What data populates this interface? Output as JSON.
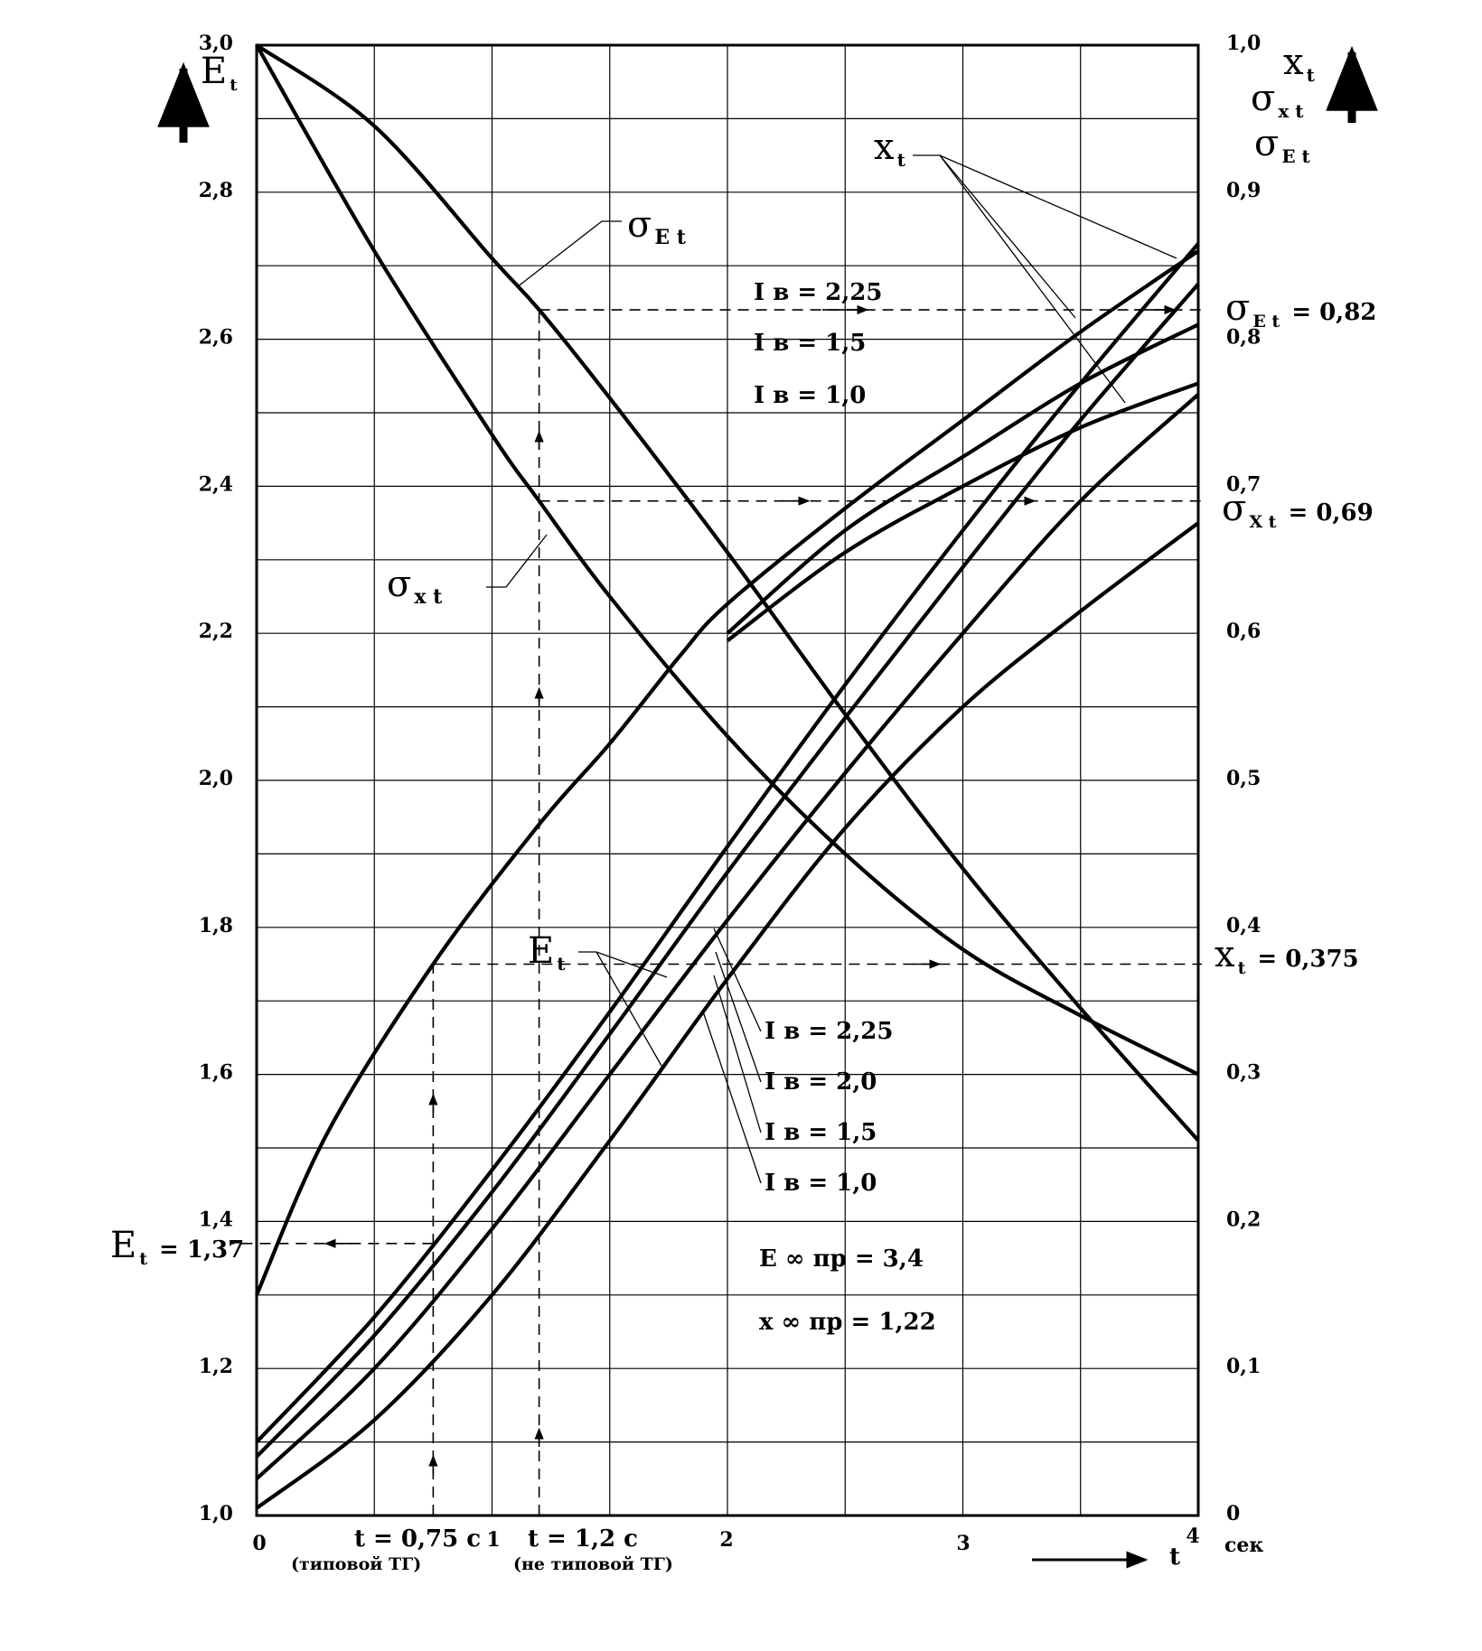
{
  "chart_data": {
    "type": "line",
    "x": {
      "range": [
        0,
        4
      ],
      "ticks": [
        0,
        1,
        2,
        3,
        4
      ],
      "tick_labels": [
        "0",
        "1",
        "2",
        "3",
        "4"
      ],
      "label": "t",
      "unit": "сек"
    },
    "y_left": {
      "range": [
        1.0,
        3.0
      ],
      "ticks": [
        1.0,
        1.2,
        1.4,
        1.6,
        1.8,
        2.0,
        2.2,
        2.4,
        2.6,
        2.8,
        3.0
      ],
      "tick_labels": [
        "1,0",
        "1,2",
        "1,4",
        "1,6",
        "1,8",
        "2,0",
        "2,2",
        "2,4",
        "2,6",
        "2,8",
        "3,0"
      ],
      "label": "E",
      "label_sub": "t"
    },
    "y_right": {
      "range": [
        0,
        1.0
      ],
      "ticks": [
        0,
        0.1,
        0.2,
        0.3,
        0.4,
        0.5,
        0.6,
        0.7,
        0.8,
        0.9,
        1.0
      ],
      "tick_labels": [
        "0",
        "0,1",
        "0,2",
        "0,3",
        "0,4",
        "0,5",
        "0,6",
        "0,7",
        "0,8",
        "0,9",
        "1,0"
      ],
      "labels": [
        {
          "sym": "x",
          "sub": "t"
        },
        {
          "sym": "σ",
          "sub": "x t"
        },
        {
          "sym": "σ",
          "sub": "E t"
        }
      ]
    },
    "grid": true,
    "series": [
      {
        "name": "σ E t",
        "axis": "right",
        "x": [
          0,
          0.5,
          1.0,
          1.2,
          1.5,
          2.0,
          2.5,
          3.0,
          3.5,
          4.0
        ],
        "y": [
          1.0,
          0.945,
          0.855,
          0.82,
          0.76,
          0.655,
          0.545,
          0.44,
          0.345,
          0.255
        ]
      },
      {
        "name": "σ x t",
        "axis": "right",
        "x": [
          0,
          0.5,
          1.0,
          1.2,
          1.5,
          2.0,
          2.5,
          3.0,
          3.5,
          4.0
        ],
        "y": [
          1.0,
          0.86,
          0.735,
          0.69,
          0.625,
          0.53,
          0.45,
          0.385,
          0.34,
          0.3
        ]
      },
      {
        "name": "x t  I в = 2,25",
        "axis": "right",
        "x": [
          0,
          0.3,
          0.75,
          1.2,
          1.5,
          1.8,
          2.0,
          2.5,
          3.0,
          3.5,
          4.0
        ],
        "y": [
          0.15,
          0.26,
          0.375,
          0.47,
          0.525,
          0.585,
          0.62,
          0.685,
          0.745,
          0.805,
          0.86
        ]
      },
      {
        "name": "x t  I в = 1,5",
        "axis": "right",
        "x": [
          2.0,
          2.5,
          3.0,
          3.5,
          4.0
        ],
        "y": [
          0.6,
          0.67,
          0.72,
          0.77,
          0.81
        ]
      },
      {
        "name": "x t  I в = 1,0",
        "axis": "right",
        "x": [
          2.0,
          2.5,
          3.0,
          3.5,
          4.0
        ],
        "y": [
          0.595,
          0.655,
          0.7,
          0.74,
          0.77
        ]
      },
      {
        "name": "E t  I в = 2,25",
        "axis": "left",
        "x": [
          0,
          0.5,
          1.0,
          1.5,
          2.0,
          2.5,
          3.0,
          3.5,
          4.0
        ],
        "y": [
          1.1,
          1.27,
          1.47,
          1.685,
          1.91,
          2.13,
          2.34,
          2.54,
          2.73
        ]
      },
      {
        "name": "E t  I в = 2,0",
        "axis": "left",
        "x": [
          0,
          0.5,
          1.0,
          1.5,
          2.0,
          2.5,
          3.0,
          3.5,
          4.0
        ],
        "y": [
          1.08,
          1.245,
          1.44,
          1.655,
          1.875,
          2.085,
          2.29,
          2.49,
          2.675
        ]
      },
      {
        "name": "E t  I в = 1,5",
        "axis": "left",
        "x": [
          0,
          0.5,
          1.0,
          1.5,
          2.0,
          2.5,
          3.0,
          3.5,
          4.0
        ],
        "y": [
          1.05,
          1.2,
          1.39,
          1.6,
          1.81,
          2.01,
          2.2,
          2.38,
          2.525
        ]
      },
      {
        "name": "E t  I в = 1,0",
        "axis": "left",
        "x": [
          0,
          0.5,
          1.0,
          1.5,
          2.0,
          2.5,
          3.0,
          3.5,
          4.0
        ],
        "y": [
          1.01,
          1.13,
          1.3,
          1.51,
          1.73,
          1.935,
          2.1,
          2.23,
          2.35
        ]
      }
    ],
    "reference_lines": [
      {
        "name": "t = 0,75 с",
        "x": 0.75
      },
      {
        "name": "t = 1,2 с",
        "x": 1.2
      },
      {
        "name": "σ E t = 0,82",
        "axis": "right",
        "y": 0.82
      },
      {
        "name": "σ x t = 0,69",
        "axis": "right",
        "y": 0.69
      },
      {
        "name": "x t = 0,375",
        "axis": "right",
        "y": 0.375
      },
      {
        "name": "E t = 1,37",
        "axis": "left",
        "y": 1.37
      }
    ],
    "annotations": {
      "sigma_e": {
        "sym": "σ",
        "sub": "E t"
      },
      "sigma_x": {
        "sym": "σ",
        "sub": "x t"
      },
      "x_t": {
        "sym": "x",
        "sub": "t"
      },
      "e_t": {
        "sym": "E",
        "sub": "t"
      },
      "legend_upper": [
        "I в = 2,25",
        "I в = 1,5",
        "I в = 1,0"
      ],
      "legend_lower": [
        "I в = 2,25",
        "I в = 2,0",
        "I в = 1,5",
        "I в = 1,0"
      ],
      "value_sigma_e": {
        "sym": "σ",
        "sub": "E t",
        "text": "=  0,82"
      },
      "value_sigma_x": {
        "sym": "σ",
        "sub": "X t",
        "text": "=  0,69"
      },
      "value_x": {
        "sym": "x",
        "sub": "t",
        "text": "= 0,375"
      },
      "value_e": {
        "sym": "E",
        "sub": "t",
        "text": "= 1,37"
      },
      "t1_label": "t = 0,75 с",
      "t1_sub": "(типовой ТГ)",
      "t2_label": "t = 1,2 с",
      "t2_sub": "(не типовой ТГ)",
      "e_inf": "E ∞ пр = 3,4",
      "x_inf": "x ∞ пр = 1,22"
    }
  }
}
